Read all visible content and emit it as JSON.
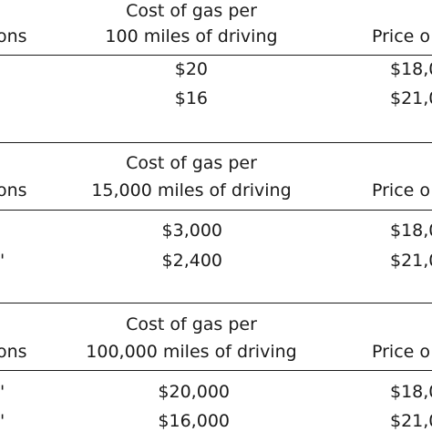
{
  "tables": [
    {
      "col1_header": "ons",
      "col2_header_line1": "Cost of gas per",
      "col2_header_line2": "100 miles of driving",
      "col3_header": "Price o",
      "rows": [
        {
          "c1": "",
          "c2": "$20",
          "c3": "$18,0"
        },
        {
          "c1": "",
          "c2": "$16",
          "c3": "$21,0"
        }
      ]
    },
    {
      "col1_header": "ons",
      "col2_header_line1": "Cost of gas per",
      "col2_header_line2": "15,000 miles of driving",
      "col3_header": "Price o",
      "rows": [
        {
          "c1": "",
          "c2": "$3,000",
          "c3": "$18,0"
        },
        {
          "c1": "'",
          "c2": "$2,400",
          "c3": "$21,0"
        }
      ]
    },
    {
      "col1_header": "ons",
      "col2_header_line1": "Cost of gas per",
      "col2_header_line2": "100,000 miles of driving",
      "col3_header": "Price o",
      "rows": [
        {
          "c1": "'",
          "c2": "$20,000",
          "c3": "$18,0"
        },
        {
          "c1": "'",
          "c2": "$16,000",
          "c3": "$21,0"
        }
      ]
    }
  ]
}
